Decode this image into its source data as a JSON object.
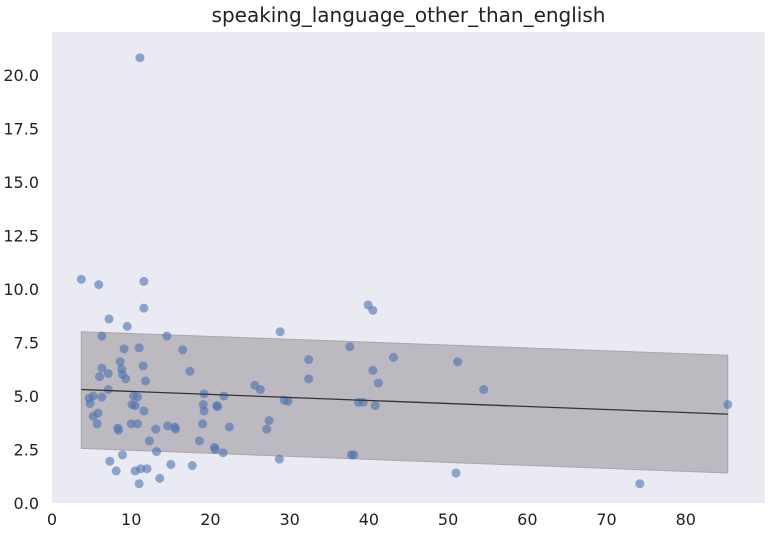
{
  "chart_data": {
    "type": "scatter",
    "title": "speaking_language_other_than_english",
    "xlabel": "",
    "ylabel": "",
    "xlim": [
      0,
      90
    ],
    "ylim": [
      0,
      22
    ],
    "grid": false,
    "xticks": [
      "0",
      "10",
      "20",
      "30",
      "40",
      "50",
      "60",
      "70",
      "80"
    ],
    "xtick_values": [
      0,
      10,
      20,
      30,
      40,
      50,
      60,
      70,
      80
    ],
    "yticks": [
      "0.0",
      "2.5",
      "5.0",
      "7.5",
      "10.0",
      "12.5",
      "15.0",
      "17.5",
      "20.0"
    ],
    "ytick_values": [
      0,
      2.5,
      5,
      7.5,
      10,
      12.5,
      15,
      17.5,
      20
    ],
    "colors": {
      "background": "#eaeaf2",
      "points": "#4c72b0",
      "band": "#b0adb3",
      "line": "#333333"
    },
    "trend_line": {
      "x": [
        3.7,
        85.3
      ],
      "y": [
        5.3,
        4.15
      ]
    },
    "band": {
      "x": [
        3.7,
        85.3
      ],
      "upper": [
        8.0,
        6.9
      ],
      "lower": [
        2.55,
        1.4
      ]
    },
    "points": [
      [
        3.7,
        10.45
      ],
      [
        5.9,
        10.2
      ],
      [
        11.6,
        10.35
      ],
      [
        11.1,
        20.8
      ],
      [
        11.6,
        9.1
      ],
      [
        9.5,
        8.25
      ],
      [
        7.2,
        8.6
      ],
      [
        6.3,
        7.8
      ],
      [
        4.7,
        4.9
      ],
      [
        4.8,
        4.65
      ],
      [
        5.2,
        5.0
      ],
      [
        5.2,
        4.05
      ],
      [
        5.7,
        3.7
      ],
      [
        5.8,
        4.2
      ],
      [
        6.0,
        5.9
      ],
      [
        6.3,
        6.3
      ],
      [
        6.3,
        4.95
      ],
      [
        7.1,
        6.05
      ],
      [
        7.1,
        5.3
      ],
      [
        7.3,
        1.95
      ],
      [
        8.1,
        1.5
      ],
      [
        8.3,
        3.5
      ],
      [
        8.4,
        3.4
      ],
      [
        8.6,
        6.6
      ],
      [
        8.8,
        6.25
      ],
      [
        8.9,
        6.0
      ],
      [
        8.9,
        2.25
      ],
      [
        9.1,
        7.2
      ],
      [
        9.3,
        5.8
      ],
      [
        10.0,
        3.7
      ],
      [
        10.1,
        4.6
      ],
      [
        10.3,
        5.0
      ],
      [
        10.5,
        4.55
      ],
      [
        10.5,
        1.5
      ],
      [
        10.8,
        3.7
      ],
      [
        10.8,
        4.95
      ],
      [
        11.0,
        0.9
      ],
      [
        11.0,
        7.25
      ],
      [
        11.2,
        1.6
      ],
      [
        11.5,
        6.4
      ],
      [
        11.6,
        4.3
      ],
      [
        11.8,
        5.7
      ],
      [
        12.0,
        1.6
      ],
      [
        12.3,
        2.9
      ],
      [
        13.1,
        3.45
      ],
      [
        13.2,
        2.4
      ],
      [
        13.6,
        1.15
      ],
      [
        14.5,
        7.8
      ],
      [
        14.6,
        3.6
      ],
      [
        15.0,
        1.8
      ],
      [
        15.5,
        3.55
      ],
      [
        15.6,
        3.45
      ],
      [
        16.5,
        7.15
      ],
      [
        17.4,
        6.15
      ],
      [
        17.7,
        1.75
      ],
      [
        18.6,
        2.9
      ],
      [
        19.0,
        3.7
      ],
      [
        19.1,
        4.6
      ],
      [
        19.2,
        4.3
      ],
      [
        19.2,
        5.1
      ],
      [
        20.5,
        2.6
      ],
      [
        20.6,
        2.5
      ],
      [
        20.8,
        4.55
      ],
      [
        20.9,
        4.5
      ],
      [
        21.6,
        2.35
      ],
      [
        21.7,
        5.0
      ],
      [
        22.4,
        3.55
      ],
      [
        25.6,
        5.5
      ],
      [
        26.3,
        5.3
      ],
      [
        27.1,
        3.45
      ],
      [
        27.4,
        3.85
      ],
      [
        28.7,
        2.05
      ],
      [
        28.8,
        8.0
      ],
      [
        29.3,
        4.8
      ],
      [
        29.8,
        4.75
      ],
      [
        32.4,
        6.7
      ],
      [
        32.4,
        5.8
      ],
      [
        37.6,
        7.3
      ],
      [
        37.8,
        2.25
      ],
      [
        38.1,
        2.25
      ],
      [
        38.7,
        4.7
      ],
      [
        39.3,
        4.7
      ],
      [
        39.9,
        9.25
      ],
      [
        40.5,
        9.0
      ],
      [
        40.5,
        6.2
      ],
      [
        40.8,
        4.55
      ],
      [
        41.2,
        5.6
      ],
      [
        43.1,
        6.8
      ],
      [
        51.2,
        6.6
      ],
      [
        51.0,
        1.4
      ],
      [
        54.5,
        5.3
      ],
      [
        74.2,
        0.9
      ],
      [
        85.3,
        4.6
      ]
    ]
  }
}
